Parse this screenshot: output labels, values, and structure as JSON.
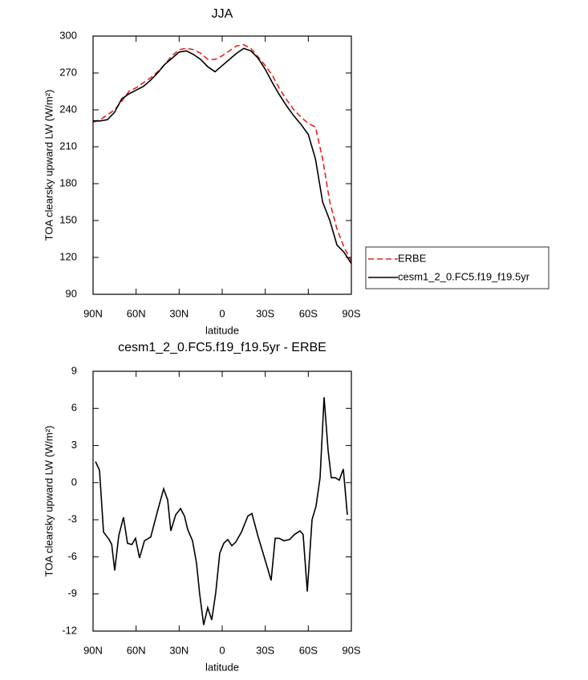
{
  "chart_data": [
    {
      "type": "line",
      "title": "JJA",
      "xlabel": "latitude",
      "ylabel": "TOA clearsky upward LW (W/m²)",
      "x": [
        90,
        85,
        80,
        75,
        70,
        65,
        60,
        55,
        50,
        45,
        40,
        35,
        30,
        25,
        20,
        15,
        10,
        5,
        0,
        -5,
        -10,
        -15,
        -20,
        -25,
        -30,
        -35,
        -40,
        -45,
        -50,
        -55,
        -60,
        -65,
        -70,
        -75,
        -80,
        -85,
        -90
      ],
      "series": [
        {
          "name": "ERBE",
          "color": "#e8201e",
          "style": "dashed",
          "values": [
            230,
            232,
            236,
            240,
            247,
            255,
            258,
            262,
            266,
            271,
            277,
            284,
            289,
            290,
            289,
            286,
            281,
            281,
            284,
            288,
            292,
            293,
            290,
            283,
            276,
            268,
            257,
            248,
            240,
            234,
            229,
            226,
            200,
            165,
            143,
            128,
            117
          ]
        },
        {
          "name": "cesm1_2_0.FC5.f19_f19.5yr",
          "color": "#000000",
          "style": "solid",
          "values": [
            231,
            231,
            232,
            238,
            249,
            253,
            256,
            259,
            264,
            270,
            277,
            282,
            287,
            288,
            285,
            281,
            275,
            271,
            276,
            281,
            286,
            290,
            288,
            282,
            273,
            262,
            252,
            243,
            235,
            228,
            220,
            200,
            165,
            150,
            130,
            124,
            115
          ]
        }
      ],
      "xlim": [
        90,
        -90
      ],
      "xticks": [
        {
          "value": 90,
          "label": "90N"
        },
        {
          "value": 60,
          "label": "60N"
        },
        {
          "value": 30,
          "label": "30N"
        },
        0,
        {
          "value": -30,
          "label": "30S"
        },
        {
          "value": -60,
          "label": "60S"
        },
        {
          "value": -90,
          "label": "90S"
        }
      ],
      "ylim": [
        90,
        300
      ],
      "yticks": [
        90,
        120,
        150,
        180,
        210,
        240,
        270,
        300
      ],
      "legend": "right"
    },
    {
      "type": "line",
      "title": "cesm1_2_0.FC5.f19_f19.5yr - ERBE",
      "xlabel": "latitude",
      "ylabel": "TOA clearsky upward LW (W/m²)",
      "x": [
        88.3,
        85.5,
        82.7,
        78.8,
        77,
        74.9,
        72.1,
        68.8,
        66,
        63,
        60.4,
        57.6,
        54.2,
        49.8,
        45.3,
        40.8,
        38,
        35.8,
        32.4,
        29,
        26.3,
        24,
        20.7,
        17.9,
        15.7,
        12.9,
        10.1,
        7.3,
        4.5,
        1.7,
        -1.1,
        -3.9,
        -6.7,
        -9.5,
        -13.4,
        -17.9,
        -20.7,
        -25.1,
        -29,
        -34.1,
        -36.9,
        -39.7,
        -43,
        -47,
        -50.3,
        -54.2,
        -56.4,
        -59.3,
        -62.6,
        -65.4,
        -68.2,
        -71,
        -73.8,
        -76,
        -78.8,
        -81.6,
        -84.4,
        -87.2
      ],
      "series": [
        {
          "color": "#000000",
          "style": "solid",
          "values": [
            1.7,
            1.0,
            -4,
            -4.6,
            -5,
            -7.1,
            -4.3,
            -2.8,
            -4.9,
            -5,
            -4.5,
            -6.1,
            -4.7,
            -4.4,
            -2.4,
            -0.5,
            -1.4,
            -3.9,
            -2.6,
            -2.1,
            -2.7,
            -3.8,
            -4.7,
            -6.5,
            -9,
            -11.5,
            -10.1,
            -11.1,
            -8.9,
            -5.7,
            -4.9,
            -4.6,
            -5.1,
            -4.8,
            -4,
            -2.7,
            -2.5,
            -4.4,
            -5.9,
            -7.9,
            -4.5,
            -4.5,
            -4.7,
            -4.6,
            -4.2,
            -3.9,
            -4.2,
            -8.8,
            -3,
            -1.9,
            0.4,
            6.9,
            2.6,
            0.4,
            0.4,
            0.2,
            1.1,
            -2.6
          ]
        }
      ],
      "xlim": [
        90,
        -90
      ],
      "xticks": [
        {
          "value": 90,
          "label": "90N"
        },
        {
          "value": 60,
          "label": "60N"
        },
        {
          "value": 30,
          "label": "30N"
        },
        0,
        {
          "value": -30,
          "label": "30S"
        },
        {
          "value": -60,
          "label": "60S"
        },
        {
          "value": -90,
          "label": "90S"
        }
      ],
      "ylim": [
        -12,
        9
      ],
      "yticks": [
        -12,
        -9,
        -6,
        -3,
        0,
        3,
        6,
        9
      ]
    }
  ]
}
